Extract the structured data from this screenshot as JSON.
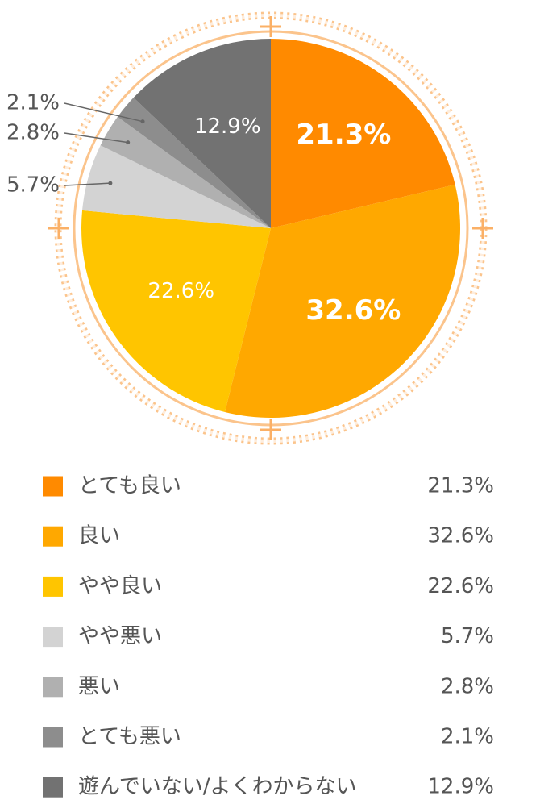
{
  "chart_data": {
    "type": "pie",
    "categories": [
      "とても良い",
      "良い",
      "やや良い",
      "やや悪い",
      "悪い",
      "とても悪い",
      "遊んでいない/よくわからない"
    ],
    "values": [
      21.3,
      32.6,
      22.6,
      5.7,
      2.8,
      2.1,
      12.9
    ],
    "value_labels": [
      "21.3%",
      "32.6%",
      "22.6%",
      "5.7%",
      "2.8%",
      "2.1%",
      "12.9%"
    ],
    "colors": [
      "#ff8a00",
      "#ffa800",
      "#ffc500",
      "#d3d3d3",
      "#b0b0b0",
      "#8d8d8d",
      "#727272"
    ],
    "legend": "bottom"
  }
}
